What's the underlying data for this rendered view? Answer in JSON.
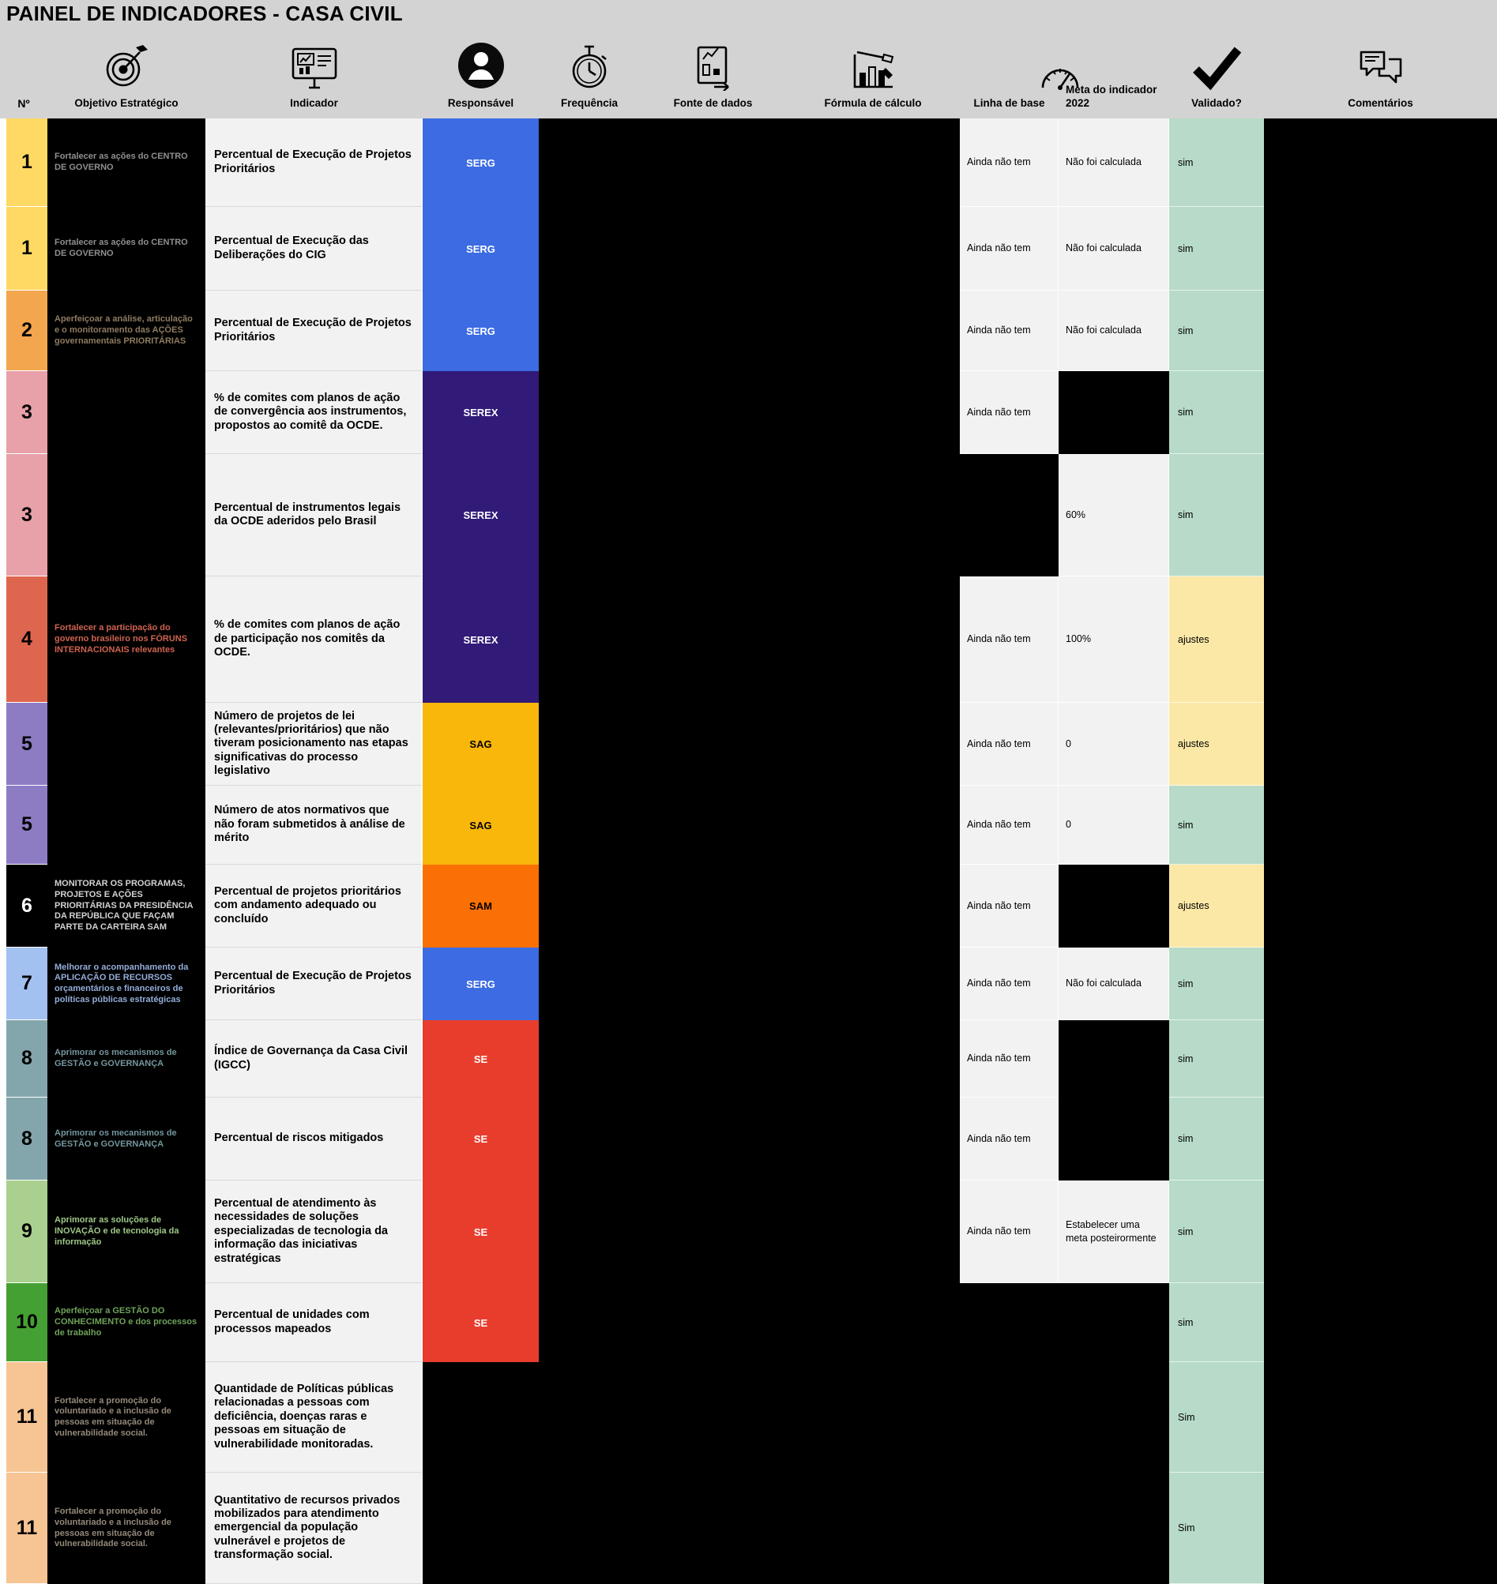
{
  "title": "PAINEL DE INDICADORES - CASA CIVIL",
  "colors": {
    "header_bg": "#d3d3d3",
    "table_bg": "#000000",
    "light_cell_bg": "#f2f2f2",
    "validated_yes_bg": "#b7dbc8",
    "validated_adjust_bg": "#fce8a6"
  },
  "columns": [
    {
      "id": "numero",
      "label": "Nº",
      "icon": ""
    },
    {
      "id": "objetivo",
      "label": "Objetivo Estratégico",
      "icon": "target-icon"
    },
    {
      "id": "indicador",
      "label": "Indicador",
      "icon": "monitor-chart-icon"
    },
    {
      "id": "responsavel",
      "label": "Responsável",
      "icon": "person-icon"
    },
    {
      "id": "frequencia",
      "label": "Frequência",
      "icon": "stopwatch-icon"
    },
    {
      "id": "fonte",
      "label": "Fonte de dados",
      "icon": "document-icon"
    },
    {
      "id": "formula",
      "label": "Fórmula de cálculo",
      "icon": "chart-tools-icon"
    },
    {
      "id": "linha_base",
      "label": "Linha de base",
      "icon": "gauge-icon"
    },
    {
      "id": "meta",
      "label": "Meta do indicador 2022",
      "icon": ""
    },
    {
      "id": "validado",
      "label": "Validado?",
      "icon": "check-icon"
    },
    {
      "id": "comentarios",
      "label": "Comentários",
      "icon": "chat-icon"
    }
  ],
  "rows": [
    {
      "numero": "1",
      "numero_bg": "#ffd964",
      "numero_text": "#000000",
      "objetivo": "Fortalecer as ações do CENTRO DE GOVERNO",
      "objetivo_color": "#8f8f8f",
      "indicador": "Percentual de Execução de Projetos Prioritários",
      "responsavel": "SERG",
      "responsavel_bg": "#3c6be2",
      "responsavel_text": "#ffffff",
      "frequencia": null,
      "fonte": null,
      "formula": null,
      "linha_base": "Ainda não tem",
      "meta": "Não foi calculada",
      "validado": "sim",
      "validado_bg": "#b7dbc8",
      "comentarios": null
    },
    {
      "numero": "1",
      "numero_bg": "#ffd964",
      "numero_text": "#000000",
      "objetivo": "Fortalecer as ações do CENTRO DE GOVERNO",
      "objetivo_color": "#8f8f8f",
      "indicador": "Percentual de Execução das Deliberações do CIG",
      "responsavel": "SERG",
      "responsavel_bg": "#3c6be2",
      "responsavel_text": "#ffffff",
      "frequencia": null,
      "fonte": null,
      "formula": null,
      "linha_base": "Ainda não tem",
      "meta": "Não foi calculada",
      "validado": "sim",
      "validado_bg": "#b7dbc8",
      "comentarios": null
    },
    {
      "numero": "2",
      "numero_bg": "#f3a64e",
      "numero_text": "#000000",
      "objetivo": "Aperfeiçoar a análise, articulação e o monitoramento das AÇÕES governamentais PRIORITÁRIAS",
      "objetivo_color": "#8f7b60",
      "indicador": "Percentual de Execução de Projetos Prioritários",
      "responsavel": "SERG",
      "responsavel_bg": "#3c6be2",
      "responsavel_text": "#ffffff",
      "frequencia": null,
      "fonte": null,
      "formula": null,
      "linha_base": "Ainda não tem",
      "meta": "Não foi calculada",
      "validado": "sim",
      "validado_bg": "#b7dbc8",
      "comentarios": null
    },
    {
      "numero": "3",
      "numero_bg": "#e8a0a9",
      "numero_text": "#000000",
      "objetivo": "",
      "objetivo_color": "#47262b",
      "indicador": "% de comites com planos de ação de convergência aos instrumentos, propostos ao comitê da OCDE.",
      "responsavel": "SEREX",
      "responsavel_bg": "#311a78",
      "responsavel_text": "#ffffff",
      "frequencia": null,
      "fonte": null,
      "formula": null,
      "linha_base": "Ainda não tem",
      "meta": null,
      "validado": "sim",
      "validado_bg": "#b7dbc8",
      "comentarios": null
    },
    {
      "numero": "3",
      "numero_bg": "#e8a0a9",
      "numero_text": "#000000",
      "objetivo": "",
      "objetivo_color": "#47262b",
      "indicador": "Percentual de instrumentos legais da OCDE aderidos pelo Brasil",
      "responsavel": "SEREX",
      "responsavel_bg": "#311a78",
      "responsavel_text": "#ffffff",
      "frequencia": null,
      "fonte": null,
      "formula": null,
      "linha_base": null,
      "meta": "60%",
      "validado": "sim",
      "validado_bg": "#b7dbc8",
      "comentarios": null
    },
    {
      "numero": "4",
      "numero_bg": "#df664e",
      "numero_text": "#000000",
      "objetivo": "Fortalecer a participação do governo brasileiro nos FÓRUNS INTERNACIONAIS relevantes",
      "objetivo_color": "#cf6350",
      "indicador": "% de comites com planos de ação de participação nos comitês da OCDE.",
      "responsavel": "SEREX",
      "responsavel_bg": "#311a78",
      "responsavel_text": "#ffffff",
      "frequencia": null,
      "fonte": null,
      "formula": null,
      "linha_base": "Ainda não tem",
      "meta": "100%",
      "validado": "ajustes",
      "validado_bg": "#fce8a6",
      "comentarios": null
    },
    {
      "numero": "5",
      "numero_bg": "#8d7cc4",
      "numero_text": "#000000",
      "objetivo": "",
      "objetivo_color": "#7466ab",
      "indicador": "Número de projetos de lei (relevantes/prioritários) que não tiveram posicionamento nas etapas significativas do processo legislativo",
      "responsavel": "SAG",
      "responsavel_bg": "#f8b70a",
      "responsavel_text": "#000000",
      "frequencia": null,
      "fonte": null,
      "formula": null,
      "linha_base": "Ainda não tem",
      "meta": "0",
      "validado": "ajustes",
      "validado_bg": "#fce8a6",
      "comentarios": null
    },
    {
      "numero": "5",
      "numero_bg": "#8d7cc4",
      "numero_text": "#000000",
      "objetivo": "",
      "objetivo_color": "#7466ab",
      "indicador": "Número de atos normativos que não foram submetidos à análise de mérito",
      "responsavel": "SAG",
      "responsavel_bg": "#f8b70a",
      "responsavel_text": "#000000",
      "frequencia": null,
      "fonte": null,
      "formula": null,
      "linha_base": "Ainda não tem",
      "meta": "0",
      "validado": "sim",
      "validado_bg": "#b7dbc8",
      "comentarios": null
    },
    {
      "numero": "6",
      "numero_bg": "#000000",
      "numero_text": "#ffffff",
      "objetivo": "MONITORAR OS PROGRAMAS, PROJETOS E AÇÕES PRIORITÁRIAS DA PRESIDÊNCIA DA REPÚBLICA QUE FAÇAM PARTE DA CARTEIRA SAM",
      "objetivo_color": "#d2d2d2",
      "indicador": "Percentual de projetos prioritários com andamento adequado ou concluído",
      "responsavel": "SAM",
      "responsavel_bg": "#fb7005",
      "responsavel_text": "#000000",
      "frequencia": null,
      "fonte": null,
      "formula": null,
      "linha_base": "Ainda não tem",
      "meta": null,
      "validado": "ajustes",
      "validado_bg": "#fce8a6",
      "comentarios": null
    },
    {
      "numero": "7",
      "numero_bg": "#a2c0f0",
      "numero_text": "#000000",
      "objetivo": "Melhorar o acompanhamento da APLICAÇÃO DE RECURSOS orçamentários e financeiros de políticas públicas estratégicas",
      "objetivo_color": "#93add9",
      "indicador": "Percentual de Execução de Projetos Prioritários",
      "responsavel": "SERG",
      "responsavel_bg": "#3c6be2",
      "responsavel_text": "#ffffff",
      "frequencia": null,
      "fonte": null,
      "formula": null,
      "linha_base": "Ainda não tem",
      "meta": "Não foi calculada",
      "validado": "sim",
      "validado_bg": "#b7dbc8",
      "comentarios": null
    },
    {
      "numero": "8",
      "numero_bg": "#83a6ac",
      "numero_text": "#000000",
      "objetivo": "Aprimorar os mecanismos de GESTÃO e GOVERNANÇA",
      "objetivo_color": "#74979e",
      "indicador": "Índice de Governança da Casa Civil (IGCC)",
      "responsavel": "SE",
      "responsavel_bg": "#e83d2d",
      "responsavel_text": "#ffffff",
      "frequencia": null,
      "fonte": null,
      "formula": null,
      "linha_base": "Ainda não tem",
      "meta": null,
      "validado": "sim",
      "validado_bg": "#b7dbc8",
      "comentarios": null
    },
    {
      "numero": "8",
      "numero_bg": "#83a6ac",
      "numero_text": "#000000",
      "objetivo": "Aprimorar os mecanismos de GESTÃO e GOVERNANÇA",
      "objetivo_color": "#74979e",
      "indicador": "Percentual de riscos mitigados",
      "responsavel": "SE",
      "responsavel_bg": "#e83d2d",
      "responsavel_text": "#ffffff",
      "frequencia": null,
      "fonte": null,
      "formula": null,
      "linha_base": "Ainda não tem",
      "meta": null,
      "validado": "sim",
      "validado_bg": "#b7dbc8",
      "comentarios": null
    },
    {
      "numero": "9",
      "numero_bg": "#a9d08e",
      "numero_text": "#000000",
      "objetivo": "Aprimorar as soluções de INOVAÇÃO e de tecnologia da informação",
      "objetivo_color": "#9ec887",
      "indicador": "Percentual de atendimento às necessidades de soluções especializadas de tecnologia da informação das iniciativas estratégicas",
      "responsavel": "SE",
      "responsavel_bg": "#e83d2d",
      "responsavel_text": "#ffffff",
      "frequencia": null,
      "fonte": null,
      "formula": null,
      "linha_base": "Ainda não tem",
      "meta": "Estabelecer uma meta posteirormente",
      "validado": "sim",
      "validado_bg": "#b7dbc8",
      "comentarios": null
    },
    {
      "numero": "10",
      "numero_bg": "#45a033",
      "numero_text": "#000000",
      "objetivo": "Aperfeiçoar a GESTÃO DO CONHECIMENTO e dos processos de trabalho",
      "objetivo_color": "#6fa35a",
      "indicador": "Percentual de unidades com processos mapeados",
      "responsavel": "SE",
      "responsavel_bg": "#e83d2d",
      "responsavel_text": "#ffffff",
      "frequencia": null,
      "fonte": null,
      "formula": null,
      "linha_base": null,
      "meta": null,
      "validado": "sim",
      "validado_bg": "#b7dbc8",
      "comentarios": null
    },
    {
      "numero": "11",
      "numero_bg": "#f7c493",
      "numero_text": "#000000",
      "objetivo": "Fortalecer a promoção do voluntariado e a inclusão de pessoas em situação de vulnerabilidade social.",
      "objetivo_color": "#94897b",
      "indicador": "Quantidade de Políticas públicas relacionadas a pessoas com deficiência, doenças raras e pessoas em situação de vulnerabilidade monitoradas.",
      "responsavel": null,
      "responsavel_bg": null,
      "responsavel_text": null,
      "frequencia": null,
      "fonte": null,
      "formula": null,
      "linha_base": null,
      "meta": null,
      "validado": "Sim",
      "validado_bg": "#b7dbc8",
      "comentarios": null
    },
    {
      "numero": "11",
      "numero_bg": "#f7c493",
      "numero_text": "#000000",
      "objetivo": "Fortalecer a promoção do voluntariado e a inclusão de pessoas em situação de vulnerabilidade social.",
      "objetivo_color": "#94897b",
      "indicador": "Quantitativo de recursos privados mobilizados para atendimento emergencial da população vulnerável e projetos de transformação social.",
      "responsavel": null,
      "responsavel_bg": null,
      "responsavel_text": null,
      "frequencia": null,
      "fonte": null,
      "formula": null,
      "linha_base": null,
      "meta": null,
      "validado": "Sim",
      "validado_bg": "#b7dbc8",
      "comentarios": null
    }
  ]
}
